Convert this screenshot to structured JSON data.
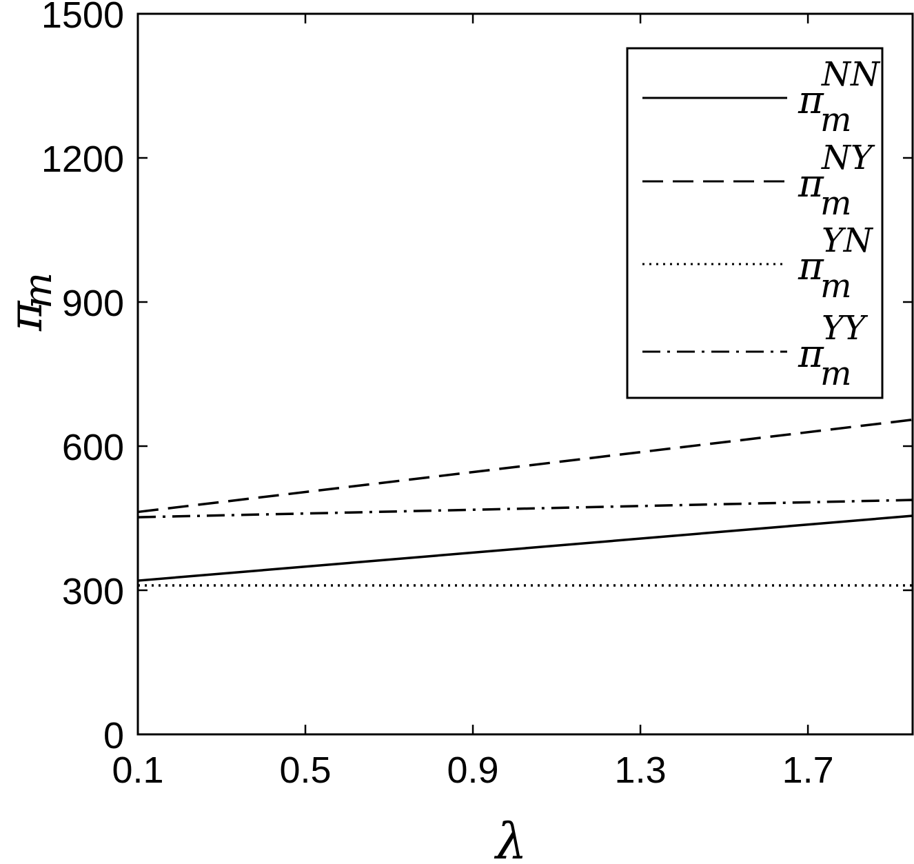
{
  "chart_data": {
    "type": "line",
    "xlabel": "λ",
    "ylabel": {
      "main": "π",
      "sub": "m"
    },
    "xlim": [
      0.1,
      1.95
    ],
    "ylim": [
      0,
      1500
    ],
    "x_ticks": [
      "0.1",
      "0.5",
      "0.9",
      "1.3",
      "1.7"
    ],
    "x_tick_values": [
      0.1,
      0.5,
      0.9,
      1.3,
      1.7
    ],
    "y_ticks": [
      "0",
      "300",
      "600",
      "900",
      "1200",
      "1500"
    ],
    "y_tick_values": [
      0,
      300,
      600,
      900,
      1200,
      1500
    ],
    "grid": false,
    "legend_position": "top-right",
    "series": [
      {
        "name": "π_m^NN",
        "main": "π",
        "sub": "m",
        "sup": "NN",
        "dash": "solid",
        "x": [
          0.1,
          1.95
        ],
        "y": [
          320,
          455
        ]
      },
      {
        "name": "π_m^NY",
        "main": "π",
        "sub": "m",
        "sup": "NY",
        "dash": "dashed",
        "x": [
          0.1,
          1.95
        ],
        "y": [
          463,
          655
        ]
      },
      {
        "name": "π_m^YN",
        "main": "π",
        "sub": "m",
        "sup": "YN",
        "dash": "dotted",
        "x": [
          0.1,
          1.95
        ],
        "y": [
          310,
          310
        ]
      },
      {
        "name": "π_m^YY",
        "main": "π",
        "sub": "m",
        "sup": "YY",
        "dash": "dashdot",
        "x": [
          0.1,
          1.95
        ],
        "y": [
          452,
          488
        ]
      }
    ]
  }
}
